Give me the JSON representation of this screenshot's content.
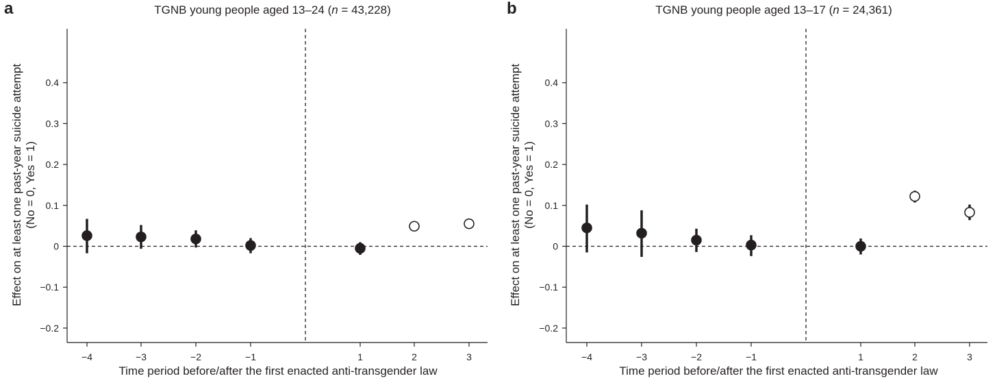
{
  "chart_data": [
    {
      "type": "scatter",
      "panel": "a",
      "title_parts": [
        "TGNB young people aged 13–24 (",
        "n",
        " = 43,228)"
      ],
      "xlabel": "Time period before/after the first enacted anti-transgender law",
      "ylabel_lines": [
        "Effect on at least one past-year suicide attempt",
        "(No = 0, Yes = 1)"
      ],
      "x_ticks": [
        "−4",
        "−3",
        "−2",
        "−1",
        "1",
        "2",
        "3"
      ],
      "y_ticks": [
        "0.4",
        "0.3",
        "0.2",
        "0.1",
        "0",
        "−0.1",
        "−0.2"
      ],
      "y_tick_values": [
        0.4,
        0.3,
        0.2,
        0.1,
        0,
        -0.1,
        -0.2
      ],
      "ylim": [
        -0.22,
        0.53
      ],
      "reference_lines": {
        "y": 0,
        "x_between": [
          -1,
          1
        ]
      },
      "points": [
        {
          "x": "−4",
          "y": 0.026,
          "lo": -0.017,
          "hi": 0.067,
          "filled": true
        },
        {
          "x": "−3",
          "y": 0.023,
          "lo": -0.006,
          "hi": 0.052,
          "filled": true
        },
        {
          "x": "−2",
          "y": 0.018,
          "lo": -0.003,
          "hi": 0.039,
          "filled": true
        },
        {
          "x": "−1",
          "y": 0.002,
          "lo": -0.017,
          "hi": 0.02,
          "filled": true
        },
        {
          "x": "1",
          "y": -0.005,
          "lo": -0.021,
          "hi": 0.01,
          "filled": true
        },
        {
          "x": "2",
          "y": 0.049,
          "lo": 0.042,
          "hi": 0.056,
          "filled": false
        },
        {
          "x": "3",
          "y": 0.055,
          "lo": 0.045,
          "hi": 0.066,
          "filled": false
        }
      ]
    },
    {
      "type": "scatter",
      "panel": "b",
      "title_parts": [
        "TGNB young people aged 13–17 (",
        "n",
        " = 24,361)"
      ],
      "xlabel": "Time period before/after the first enacted anti-transgender law",
      "ylabel_lines": [
        "Effect on at least one past-year suicide attempt",
        "(No = 0, Yes = 1)"
      ],
      "x_ticks": [
        "−4",
        "−3",
        "−2",
        "−1",
        "1",
        "2",
        "3"
      ],
      "y_ticks": [
        "0.4",
        "0.3",
        "0.2",
        "0.1",
        "0",
        "−0.1",
        "−0.2"
      ],
      "y_tick_values": [
        0.4,
        0.3,
        0.2,
        0.1,
        0,
        -0.1,
        -0.2
      ],
      "ylim": [
        -0.22,
        0.53
      ],
      "reference_lines": {
        "y": 0,
        "x_between": [
          -1,
          1
        ]
      },
      "points": [
        {
          "x": "−4",
          "y": 0.045,
          "lo": -0.015,
          "hi": 0.102,
          "filled": true
        },
        {
          "x": "−3",
          "y": 0.032,
          "lo": -0.026,
          "hi": 0.088,
          "filled": true
        },
        {
          "x": "−2",
          "y": 0.015,
          "lo": -0.014,
          "hi": 0.043,
          "filled": true
        },
        {
          "x": "−1",
          "y": 0.003,
          "lo": -0.024,
          "hi": 0.027,
          "filled": true
        },
        {
          "x": "1",
          "y": 0.0,
          "lo": -0.02,
          "hi": 0.019,
          "filled": true
        },
        {
          "x": "2",
          "y": 0.122,
          "lo": 0.107,
          "hi": 0.136,
          "filled": false
        },
        {
          "x": "3",
          "y": 0.083,
          "lo": 0.064,
          "hi": 0.102,
          "filled": false
        }
      ]
    }
  ],
  "style": {
    "ink": "#231f20",
    "background": "#ffffff"
  }
}
